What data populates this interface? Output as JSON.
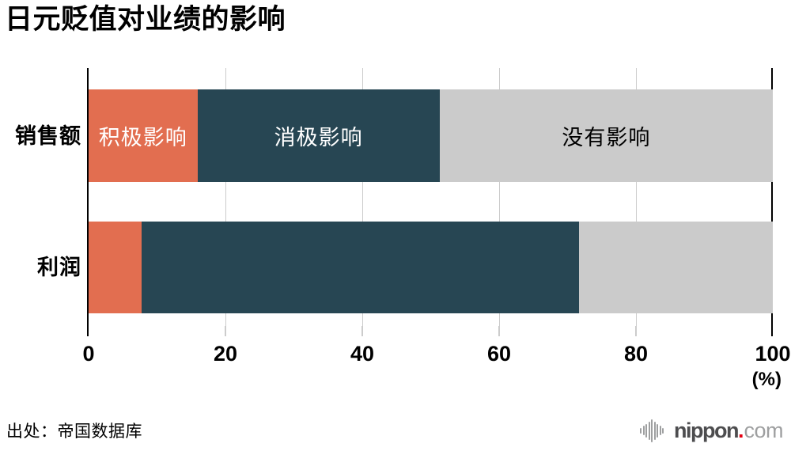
{
  "title": "日元贬值对业绩的影响",
  "source_note": "出处：帝国数据库",
  "logo": {
    "icon": "soundwave-icon",
    "name": "nippon",
    "dot": ".",
    "tld": "com"
  },
  "axis": {
    "unit_label": "(%)",
    "tick_labels": [
      "0",
      "20",
      "40",
      "60",
      "80",
      "100"
    ]
  },
  "colors": {
    "positive": "#e26e50",
    "negative": "#274653",
    "none": "#cbcbcb",
    "grid": "#cccccc",
    "axis_line": "#000000",
    "logo_red": "#e50012",
    "logo_gray": "#9e9fa0",
    "logo_dark": "#4d4d4f"
  },
  "chart_data": {
    "type": "bar",
    "orientation": "horizontal",
    "stacked": true,
    "title": "日元贬值对业绩的影响",
    "categories": [
      "销售额",
      "利润"
    ],
    "category_keys": [
      "sales",
      "profit"
    ],
    "series": [
      {
        "key": "positive-impact",
        "name": "积极影响",
        "values": [
          15.9,
          7.7
        ],
        "color": "#e26e50",
        "label_color": "#ffffff"
      },
      {
        "key": "negative-impact",
        "name": "消极影响",
        "values": [
          35.4,
          64.0
        ],
        "color": "#274653",
        "label_color": "#ffffff"
      },
      {
        "key": "no-impact",
        "name": "没有影响",
        "values": [
          48.7,
          28.3
        ],
        "color": "#cbcbcb",
        "label_color": "#000000"
      }
    ],
    "labels_shown_on_category_index": 0,
    "xlim": [
      0,
      100
    ],
    "x_ticks": [
      0,
      20,
      40,
      60,
      80,
      100
    ],
    "unit": "%",
    "grid": true,
    "legend": "inside-first-bar",
    "source": "帝国数据库"
  }
}
